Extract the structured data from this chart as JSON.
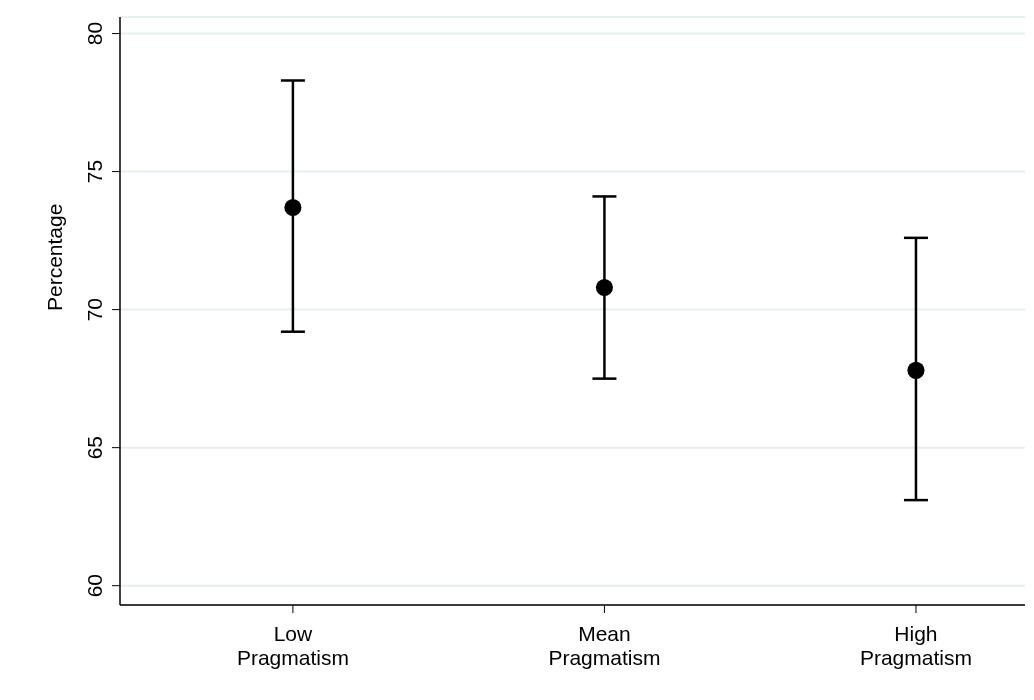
{
  "chart_data": {
    "type": "scatter",
    "ylabel": "Percentage",
    "categories": [
      "Low Pragmatism",
      "Mean Pragmatism",
      "High Pragmatism"
    ],
    "series": [
      {
        "color": "#000000",
        "values": [
          73.7,
          70.8,
          67.8
        ],
        "errors": [
          [
            69.2,
            78.3
          ],
          [
            67.5,
            74.1
          ],
          [
            63.1,
            72.6
          ]
        ]
      }
    ],
    "ylim": [
      59.3,
      80.6
    ],
    "yticks": [
      60,
      65,
      70,
      75,
      80
    ],
    "grid": "y",
    "marker": "circle",
    "legend": false
  }
}
